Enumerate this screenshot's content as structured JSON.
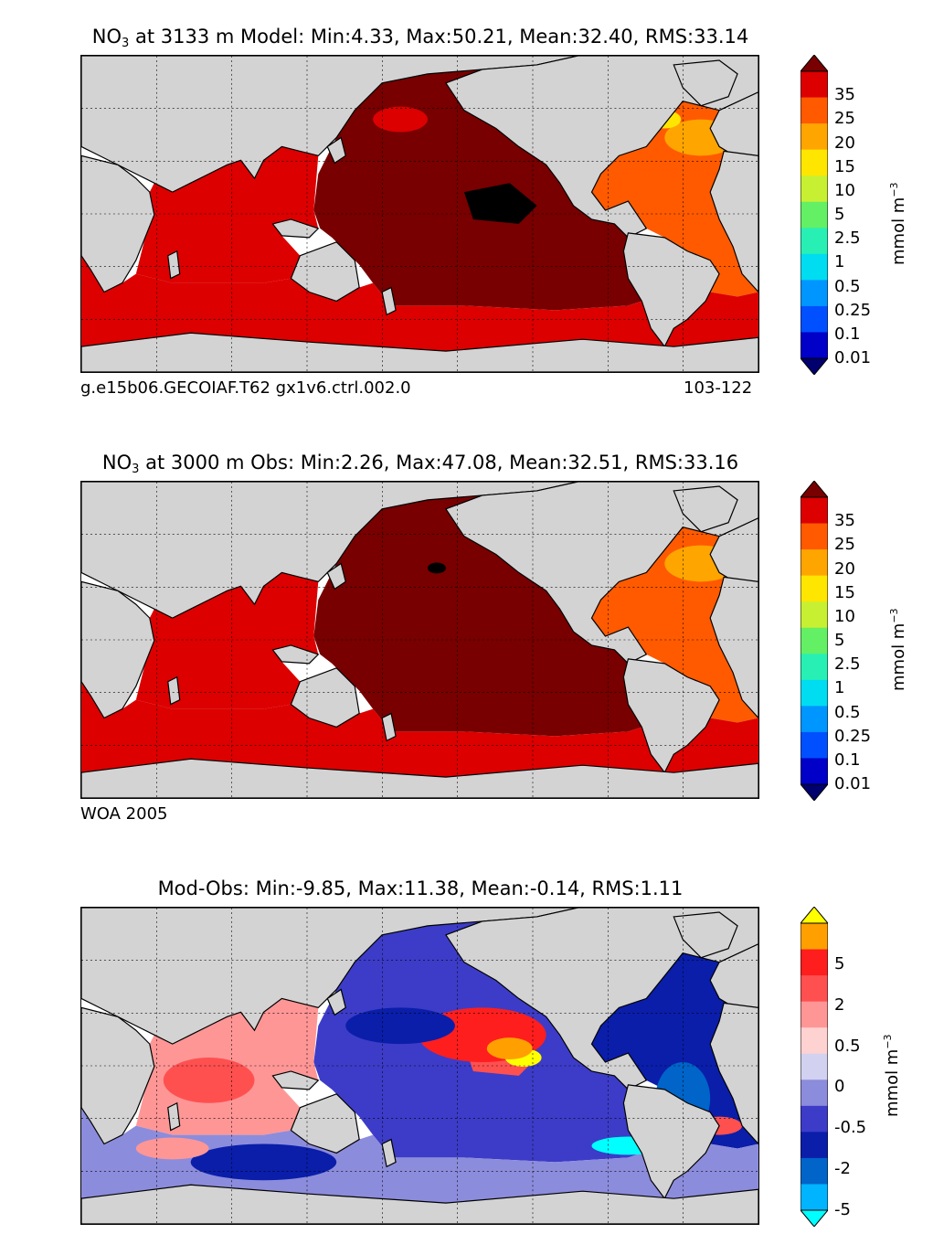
{
  "panels": [
    {
      "title_prefix": "NO",
      "title_sub": "3",
      "title_rest": " at 3133 m Model: Min:4.33, Max:50.21, Mean:32.40, RMS:33.14",
      "foot_left": "g.e15b06.GECOIAF.T62 gx1v6.ctrl.002.0",
      "foot_right": "103-122",
      "colorbar_ticks": [
        "35",
        "25",
        "20",
        "15",
        "10",
        "5",
        "2.5",
        "1",
        "0.5",
        "0.25",
        "0.1",
        "0.01"
      ],
      "unit_main": "mmol m",
      "unit_sup": "−3"
    },
    {
      "title_prefix": "NO",
      "title_sub": "3",
      "title_rest": " at 3000 m Obs: Min:2.26, Max:47.08, Mean:32.51, RMS:33.16",
      "foot_left": "WOA 2005",
      "foot_right": "",
      "colorbar_ticks": [
        "35",
        "25",
        "20",
        "15",
        "10",
        "5",
        "2.5",
        "1",
        "0.5",
        "0.25",
        "0.1",
        "0.01"
      ],
      "unit_main": "mmol m",
      "unit_sup": "−3"
    },
    {
      "title_prefix": "",
      "title_sub": "",
      "title_rest": "Mod-Obs: Min:-9.85, Max:11.38, Mean:-0.14, RMS:1.11",
      "foot_left": "",
      "foot_right": "",
      "colorbar_ticks": [
        "5",
        "2",
        "0.5",
        "0",
        "-0.5",
        "-2",
        "-5"
      ],
      "unit_main": "mmol m",
      "unit_sup": "−3"
    }
  ],
  "chart_data": [
    {
      "type": "heatmap",
      "title": "NO3 at 3133 m Model: Min:4.33, Max:50.21, Mean:32.40, RMS:33.14",
      "stats": {
        "min": 4.33,
        "max": 50.21,
        "mean": 32.4,
        "rms": 33.14
      },
      "variable": "NO3",
      "depth_m": 3133,
      "source": "g.e15b06.GECOIAF.T62 gx1v6.ctrl.002.0",
      "years": "103-122",
      "colorbar_levels": [
        0.01,
        0.1,
        0.25,
        0.5,
        1,
        2.5,
        5,
        10,
        15,
        20,
        25,
        35
      ],
      "colorbar_colors": [
        "#00006e",
        "#0000c8",
        "#0050ff",
        "#0096ff",
        "#00dcf0",
        "#28f0b4",
        "#64f064",
        "#c8f032",
        "#ffe600",
        "#ffa500",
        "#ff5a00",
        "#dc0000",
        "#780000"
      ],
      "units": "mmol m-3"
    },
    {
      "type": "heatmap",
      "title": "NO3 at 3000 m Obs: Min:2.26, Max:47.08, Mean:32.51, RMS:33.16",
      "stats": {
        "min": 2.26,
        "max": 47.08,
        "mean": 32.51,
        "rms": 33.16
      },
      "variable": "NO3",
      "depth_m": 3000,
      "source": "WOA 2005",
      "colorbar_levels": [
        0.01,
        0.1,
        0.25,
        0.5,
        1,
        2.5,
        5,
        10,
        15,
        20,
        25,
        35
      ],
      "colorbar_colors": [
        "#00006e",
        "#0000c8",
        "#0050ff",
        "#0096ff",
        "#00dcf0",
        "#28f0b4",
        "#64f064",
        "#c8f032",
        "#ffe600",
        "#ffa500",
        "#ff5a00",
        "#dc0000",
        "#780000"
      ],
      "units": "mmol m-3"
    },
    {
      "type": "heatmap",
      "title": "Mod-Obs: Min:-9.85, Max:11.38, Mean:-0.14, RMS:1.11",
      "stats": {
        "min": -9.85,
        "max": 11.38,
        "mean": -0.14,
        "rms": 1.11
      },
      "colorbar_levels": [
        -5,
        -2,
        -0.5,
        0,
        0.5,
        2,
        5
      ],
      "colorbar_colors": [
        "#00ffff",
        "#00b4ff",
        "#0064c8",
        "#0a1eaa",
        "#3c3cc8",
        "#8c8cdc",
        "#d2d2f0",
        "#ffd2d2",
        "#ff9696",
        "#ff5050",
        "#ff1e1e",
        "#ffa000",
        "#ffff00"
      ],
      "units": "mmol m-3"
    }
  ]
}
